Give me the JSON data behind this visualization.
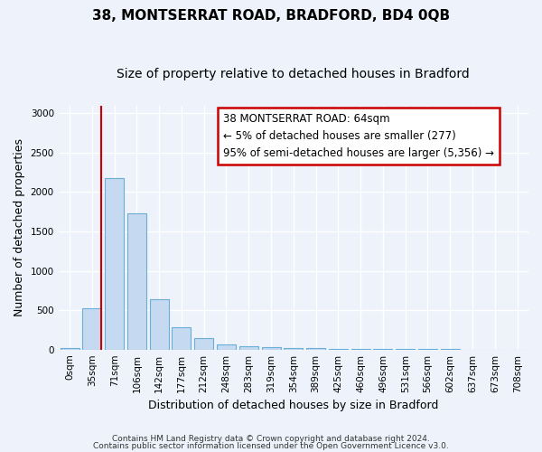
{
  "title1": "38, MONTSERRAT ROAD, BRADFORD, BD4 0QB",
  "title2": "Size of property relative to detached houses in Bradford",
  "xlabel": "Distribution of detached houses by size in Bradford",
  "ylabel": "Number of detached properties",
  "bin_labels": [
    "0sqm",
    "35sqm",
    "71sqm",
    "106sqm",
    "142sqm",
    "177sqm",
    "212sqm",
    "248sqm",
    "283sqm",
    "319sqm",
    "354sqm",
    "389sqm",
    "425sqm",
    "460sqm",
    "496sqm",
    "531sqm",
    "566sqm",
    "602sqm",
    "637sqm",
    "673sqm",
    "708sqm"
  ],
  "bar_values": [
    20,
    520,
    2180,
    1730,
    640,
    285,
    150,
    65,
    40,
    30,
    20,
    15,
    10,
    5,
    5,
    5,
    3,
    3,
    2,
    2,
    2
  ],
  "bar_color": "#c5d9f0",
  "bar_edgecolor": "#6baed6",
  "annotation_line1": "38 MONTSERRAT ROAD: 64sqm",
  "annotation_line2": "← 5% of detached houses are smaller (277)",
  "annotation_line3": "95% of semi-detached houses are larger (5,356) →",
  "annotation_box_color": "#ffffff",
  "annotation_box_edgecolor": "#cc0000",
  "vline_x": 1.42,
  "ylim": [
    0,
    3100
  ],
  "yticks": [
    0,
    500,
    1000,
    1500,
    2000,
    2500,
    3000
  ],
  "footer1": "Contains HM Land Registry data © Crown copyright and database right 2024.",
  "footer2": "Contains public sector information licensed under the Open Government Licence v3.0.",
  "bg_color": "#edf2fb",
  "grid_color": "#ffffff",
  "title1_fontsize": 11,
  "title2_fontsize": 10,
  "tick_fontsize": 7.5,
  "ylabel_fontsize": 9,
  "xlabel_fontsize": 9,
  "annotation_fontsize": 8.5,
  "footer_fontsize": 6.5
}
